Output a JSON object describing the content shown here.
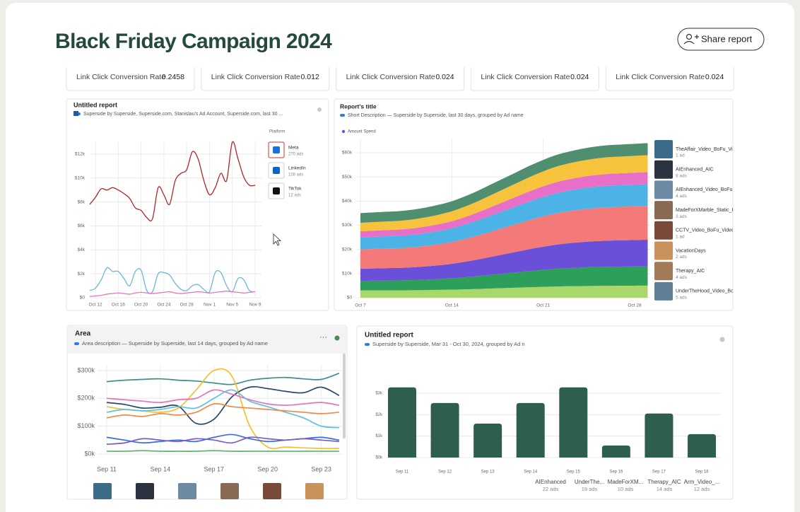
{
  "header": {
    "title": "Black Friday Campaign 2024",
    "share_button": "Share report"
  },
  "kpis": [
    {
      "label": "Link Click Conversion Rate",
      "value": 0.2458
    },
    {
      "label": "Link Click Conversion Rate",
      "value": 0.012
    },
    {
      "label": "Link Click Conversion Rate",
      "value": 0.024
    },
    {
      "label": "Link Click Conversion Rate",
      "value": 0.024
    },
    {
      "label": "Link Click Conversion Rate",
      "value": 0.024
    }
  ],
  "chart_data": [
    {
      "type": "line",
      "title": "Untitled report",
      "subtitle": "Superside by Superside, Superside.com, Stanislau's Ad Account, Superside.com, last 30 ...",
      "legend_title": "Platform",
      "grid": true,
      "categories": [
        null,
        "Oct 12",
        null,
        null,
        null,
        "Oct 16",
        null,
        null,
        null,
        "Oct 20",
        null,
        null,
        null,
        "Oct 24",
        null,
        null,
        null,
        "Oct 28",
        null,
        null,
        null,
        "Nov 1",
        null,
        null,
        null,
        "Nov 5",
        null,
        null,
        null,
        "Nov 9"
      ],
      "series": [
        {
          "name": "Meta",
          "ads": "270 ads",
          "color": "#b0262b",
          "values": [
            7800,
            8400,
            9100,
            9000,
            9200,
            9000,
            8700,
            8300,
            7500,
            7300,
            6700,
            6600,
            9200,
            8600,
            7800,
            9800,
            10400,
            10700,
            12200,
            11600,
            9800,
            8600,
            9200,
            10400,
            9800,
            13000,
            11600,
            10100,
            9400,
            9400
          ]
        },
        {
          "name": "LinkedIn",
          "ads": "108 ads",
          "color": "#6ab7d8",
          "values": [
            600,
            800,
            1500,
            2500,
            2200,
            2200,
            1600,
            1000,
            2200,
            2300,
            600,
            500,
            2000,
            2100,
            1900,
            1200,
            700,
            600,
            1000,
            1100,
            700,
            500,
            2100,
            2100,
            1000,
            500,
            1600,
            1500,
            600,
            500
          ]
        },
        {
          "name": "TikTok",
          "ads": "12 ads",
          "color": "#e27ab8",
          "values": [
            100,
            150,
            200,
            300,
            350,
            400,
            350,
            300,
            400,
            450,
            400,
            350,
            400,
            450,
            500,
            400,
            350,
            400,
            450,
            500,
            450,
            400,
            450,
            500,
            550,
            500,
            450,
            400,
            450,
            500
          ]
        }
      ],
      "ylim": [
        0,
        13000
      ],
      "yticks": [
        {
          "value": 0,
          "label": "$0"
        },
        {
          "value": 2000,
          "label": "$2k"
        },
        {
          "value": 4000,
          "label": "$4k"
        },
        {
          "value": 6000,
          "label": "$6k"
        },
        {
          "value": 8000,
          "label": "$8k"
        },
        {
          "value": 10000,
          "label": "$10k"
        },
        {
          "value": 12000,
          "label": "$12k"
        }
      ]
    },
    {
      "type": "area",
      "title": "Report's title",
      "subtitle": "Short Description — Superside by Superside, last 30 days, grouped by Ad name",
      "legend_title": "Amount Spend",
      "grid": true,
      "categories": [
        "Oct 7",
        null,
        null,
        null,
        null,
        null,
        null,
        "Oct 14",
        null,
        null,
        null,
        null,
        null,
        null,
        "Oct 21",
        null,
        null,
        null,
        null,
        null,
        null,
        "Oct 28",
        null
      ],
      "series": [
        {
          "name": "UnderTheHood_Video_Bo",
          "ads": "5 ads",
          "color": "#a8d86a",
          "values": [
            3000,
            3020,
            3040,
            3060,
            3100,
            3160,
            3240,
            3340,
            3480,
            3640,
            3820,
            4000,
            4180,
            4360,
            4520,
            4660,
            4760,
            4840,
            4900,
            4940,
            4960,
            4980,
            5000
          ]
        },
        {
          "name": "Therapy_AIC",
          "ads": "4 ads",
          "color": "#2e9e5b",
          "values": [
            4000,
            4040,
            4080,
            4120,
            4200,
            4320,
            4480,
            4680,
            4960,
            5280,
            5640,
            6000,
            6360,
            6720,
            7040,
            7320,
            7520,
            7680,
            7800,
            7880,
            7920,
            7960,
            8000
          ]
        },
        {
          "name": "VacationDays",
          "ads": "2 ads",
          "color": "#6a4fd8",
          "values": [
            5000,
            5060,
            5120,
            5180,
            5300,
            5480,
            5720,
            6020,
            6440,
            6920,
            7460,
            8000,
            8540,
            9080,
            9560,
            9980,
            10280,
            10520,
            10700,
            10820,
            10880,
            10940,
            11000
          ]
        },
        {
          "name": "CCTV_Video_BoFu_Video",
          "ads": "1 ad",
          "color": "#f47a7a",
          "values": [
            8000,
            8060,
            8120,
            8180,
            8300,
            8480,
            8720,
            9020,
            9440,
            9920,
            10460,
            11000,
            11540,
            12080,
            12560,
            12980,
            13280,
            13520,
            13700,
            13820,
            13880,
            13940,
            14000
          ]
        },
        {
          "name": "MadeForXMarble_Static_I",
          "ads": "3 ads",
          "color": "#4bb3e6",
          "values": [
            5000,
            5040,
            5080,
            5120,
            5200,
            5320,
            5480,
            5680,
            5960,
            6280,
            6640,
            7000,
            7360,
            7720,
            8040,
            8320,
            8520,
            8680,
            8800,
            8880,
            8920,
            8960,
            9000
          ]
        },
        {
          "name": "AIEnhanced_Video_BoFu",
          "ads": "4 ads",
          "color": "#e86fc8",
          "values": [
            2500,
            2525,
            2550,
            2575,
            2625,
            2700,
            2800,
            2925,
            3100,
            3300,
            3525,
            3750,
            3975,
            4200,
            4400,
            4575,
            4700,
            4800,
            4875,
            4925,
            4950,
            4975,
            5000
          ]
        },
        {
          "name": "AIEnhanced_AIC",
          "ads": "8 ads",
          "color": "#f7c33c",
          "values": [
            3500,
            3535,
            3570,
            3605,
            3675,
            3780,
            3920,
            4095,
            4340,
            4620,
            4935,
            5250,
            5565,
            5880,
            6160,
            6405,
            6580,
            6720,
            6825,
            6895,
            6930,
            6965,
            7000
          ]
        },
        {
          "name": "TheAffair_Video_BoFu_Vi",
          "ads": "1 ad",
          "color": "#4f8f6f",
          "values": [
            4000,
            4010,
            4020,
            4030,
            4050,
            4080,
            4120,
            4170,
            4240,
            4320,
            4410,
            4500,
            4590,
            4680,
            4760,
            4830,
            4880,
            4920,
            4950,
            4970,
            4980,
            4990,
            5000
          ]
        }
      ],
      "ylim": [
        0,
        66000
      ],
      "yticks": [
        {
          "value": 0,
          "label": "$0"
        },
        {
          "value": 10000,
          "label": "$10k"
        },
        {
          "value": 20000,
          "label": "$20k"
        },
        {
          "value": 30000,
          "label": "$30k"
        },
        {
          "value": 40000,
          "label": "$40k"
        },
        {
          "value": 50000,
          "label": "$50k"
        },
        {
          "value": 60000,
          "label": "$60k"
        }
      ]
    },
    {
      "type": "line",
      "title": "Area",
      "subtitle": "Area description — Superside by Superside, last 14 days, grouped by Ad name",
      "grid": true,
      "categories": [
        "Sep 11",
        null,
        null,
        "Sep 14",
        null,
        null,
        "Sep 17",
        null,
        null,
        "Sep 20",
        null,
        null,
        "Sep 23",
        null
      ],
      "series": [
        {
          "color": "#3f8f8a",
          "values": [
            260000,
            265000,
            268000,
            270000,
            265000,
            262000,
            255000,
            250000,
            265000,
            272000,
            275000,
            270000,
            268000,
            290000
          ]
        },
        {
          "color": "#f2c12e",
          "values": [
            170000,
            160000,
            155000,
            150000,
            165000,
            230000,
            300000,
            280000,
            100000,
            25000,
            25000,
            22000,
            20000,
            20000
          ]
        },
        {
          "color": "#2b4867",
          "values": [
            185000,
            178000,
            165000,
            168000,
            172000,
            110000,
            125000,
            205000,
            240000,
            235000,
            225000,
            220000,
            240000,
            210000
          ]
        },
        {
          "color": "#e872b8",
          "values": [
            200000,
            195000,
            190000,
            185000,
            195000,
            200000,
            230000,
            215000,
            195000,
            180000,
            175000,
            180000,
            185000,
            175000
          ]
        },
        {
          "color": "#5ec0e0",
          "values": [
            150000,
            160000,
            155000,
            160000,
            170000,
            165000,
            200000,
            230000,
            190000,
            170000,
            150000,
            130000,
            100000,
            95000
          ]
        },
        {
          "color": "#ef8a4a",
          "values": [
            130000,
            140000,
            135000,
            145000,
            140000,
            150000,
            180000,
            170000,
            165000,
            160000,
            155000,
            150000,
            145000,
            150000
          ]
        },
        {
          "color": "#3a6fd8",
          "values": [
            60000,
            50000,
            40000,
            45000,
            50000,
            45000,
            60000,
            70000,
            55000,
            45000,
            50000,
            55000,
            60000,
            50000
          ]
        },
        {
          "color": "#7a5cd0",
          "values": [
            35000,
            40000,
            55000,
            50000,
            45000,
            55000,
            50000,
            40000,
            60000,
            55000,
            50000,
            55000,
            50000,
            45000
          ]
        },
        {
          "color": "#58b56b",
          "values": [
            10000,
            10000,
            12000,
            10000,
            10000,
            10000,
            12000,
            10000,
            10000,
            10000,
            10000,
            10000,
            10000,
            10000
          ]
        }
      ],
      "ylim": [
        0,
        320000
      ],
      "yticks": [
        {
          "value": 0,
          "label": "$0k"
        },
        {
          "value": 100000,
          "label": "$100k"
        },
        {
          "value": 200000,
          "label": "$200k"
        },
        {
          "value": 300000,
          "label": "$300k"
        }
      ]
    },
    {
      "type": "bar",
      "title": "Untitled report",
      "subtitle": "Superside by Superside, Mar 31 - Oct 30, 2024, grouped by Ad n",
      "grid": true,
      "color": "#2e5e4e",
      "categories": [
        "Sep 11",
        "Sep 12",
        "Sep 13",
        "Sep 14",
        "Sep 15",
        "Sep 16",
        "Sep 17",
        "Sep 18"
      ],
      "values": [
        3270,
        2540,
        1580,
        2540,
        3270,
        560,
        2050,
        1090
      ],
      "ylim": [
        0,
        3500
      ],
      "yticks": [
        {
          "value": 0,
          "label": "$0k"
        },
        {
          "value": 1000,
          "label": "$1k"
        },
        {
          "value": 2000,
          "label": "$2k"
        },
        {
          "value": 3000,
          "label": "$3k"
        }
      ],
      "ad_groups": [
        {
          "name": "AIEnhanced",
          "ads": "22 ads"
        },
        {
          "name": "UnderThe...",
          "ads": "19 ads"
        },
        {
          "name": "MadeForXM...",
          "ads": "10 ads"
        },
        {
          "name": "Therapy_AIC",
          "ads": "14 ads"
        },
        {
          "name": "Arm_Video_...",
          "ads": "12 ads"
        }
      ]
    }
  ]
}
